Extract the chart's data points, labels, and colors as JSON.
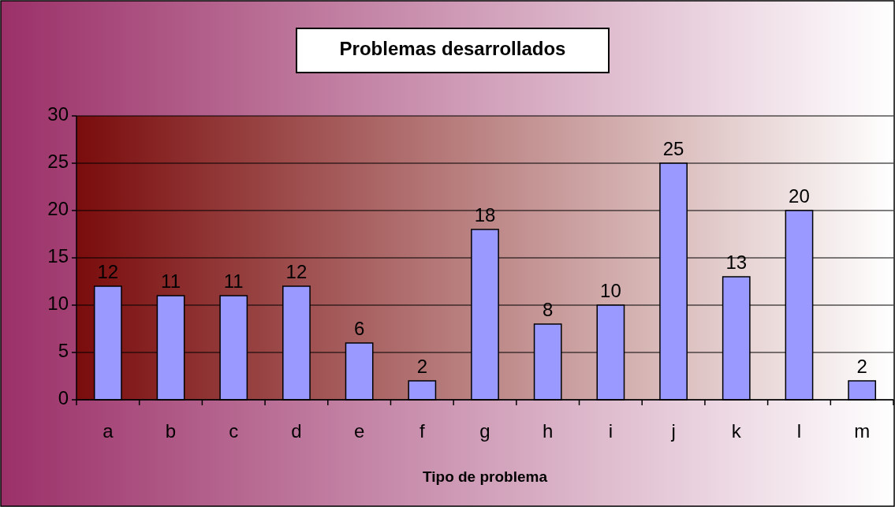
{
  "chart_data": {
    "type": "bar",
    "title": "Problemas desarrollados",
    "xlabel": "Tipo de problema",
    "categories": [
      "a",
      "b",
      "c",
      "d",
      "e",
      "f",
      "g",
      "h",
      "i",
      "j",
      "k",
      "l",
      "m"
    ],
    "values": [
      12,
      11,
      11,
      12,
      6,
      2,
      18,
      8,
      10,
      25,
      13,
      20,
      2
    ],
    "color": "#9999ff",
    "ylim": [
      0,
      30
    ],
    "yticks": [
      0,
      5,
      10,
      15,
      20,
      25,
      30
    ],
    "grid": "y",
    "data_labels": true
  }
}
